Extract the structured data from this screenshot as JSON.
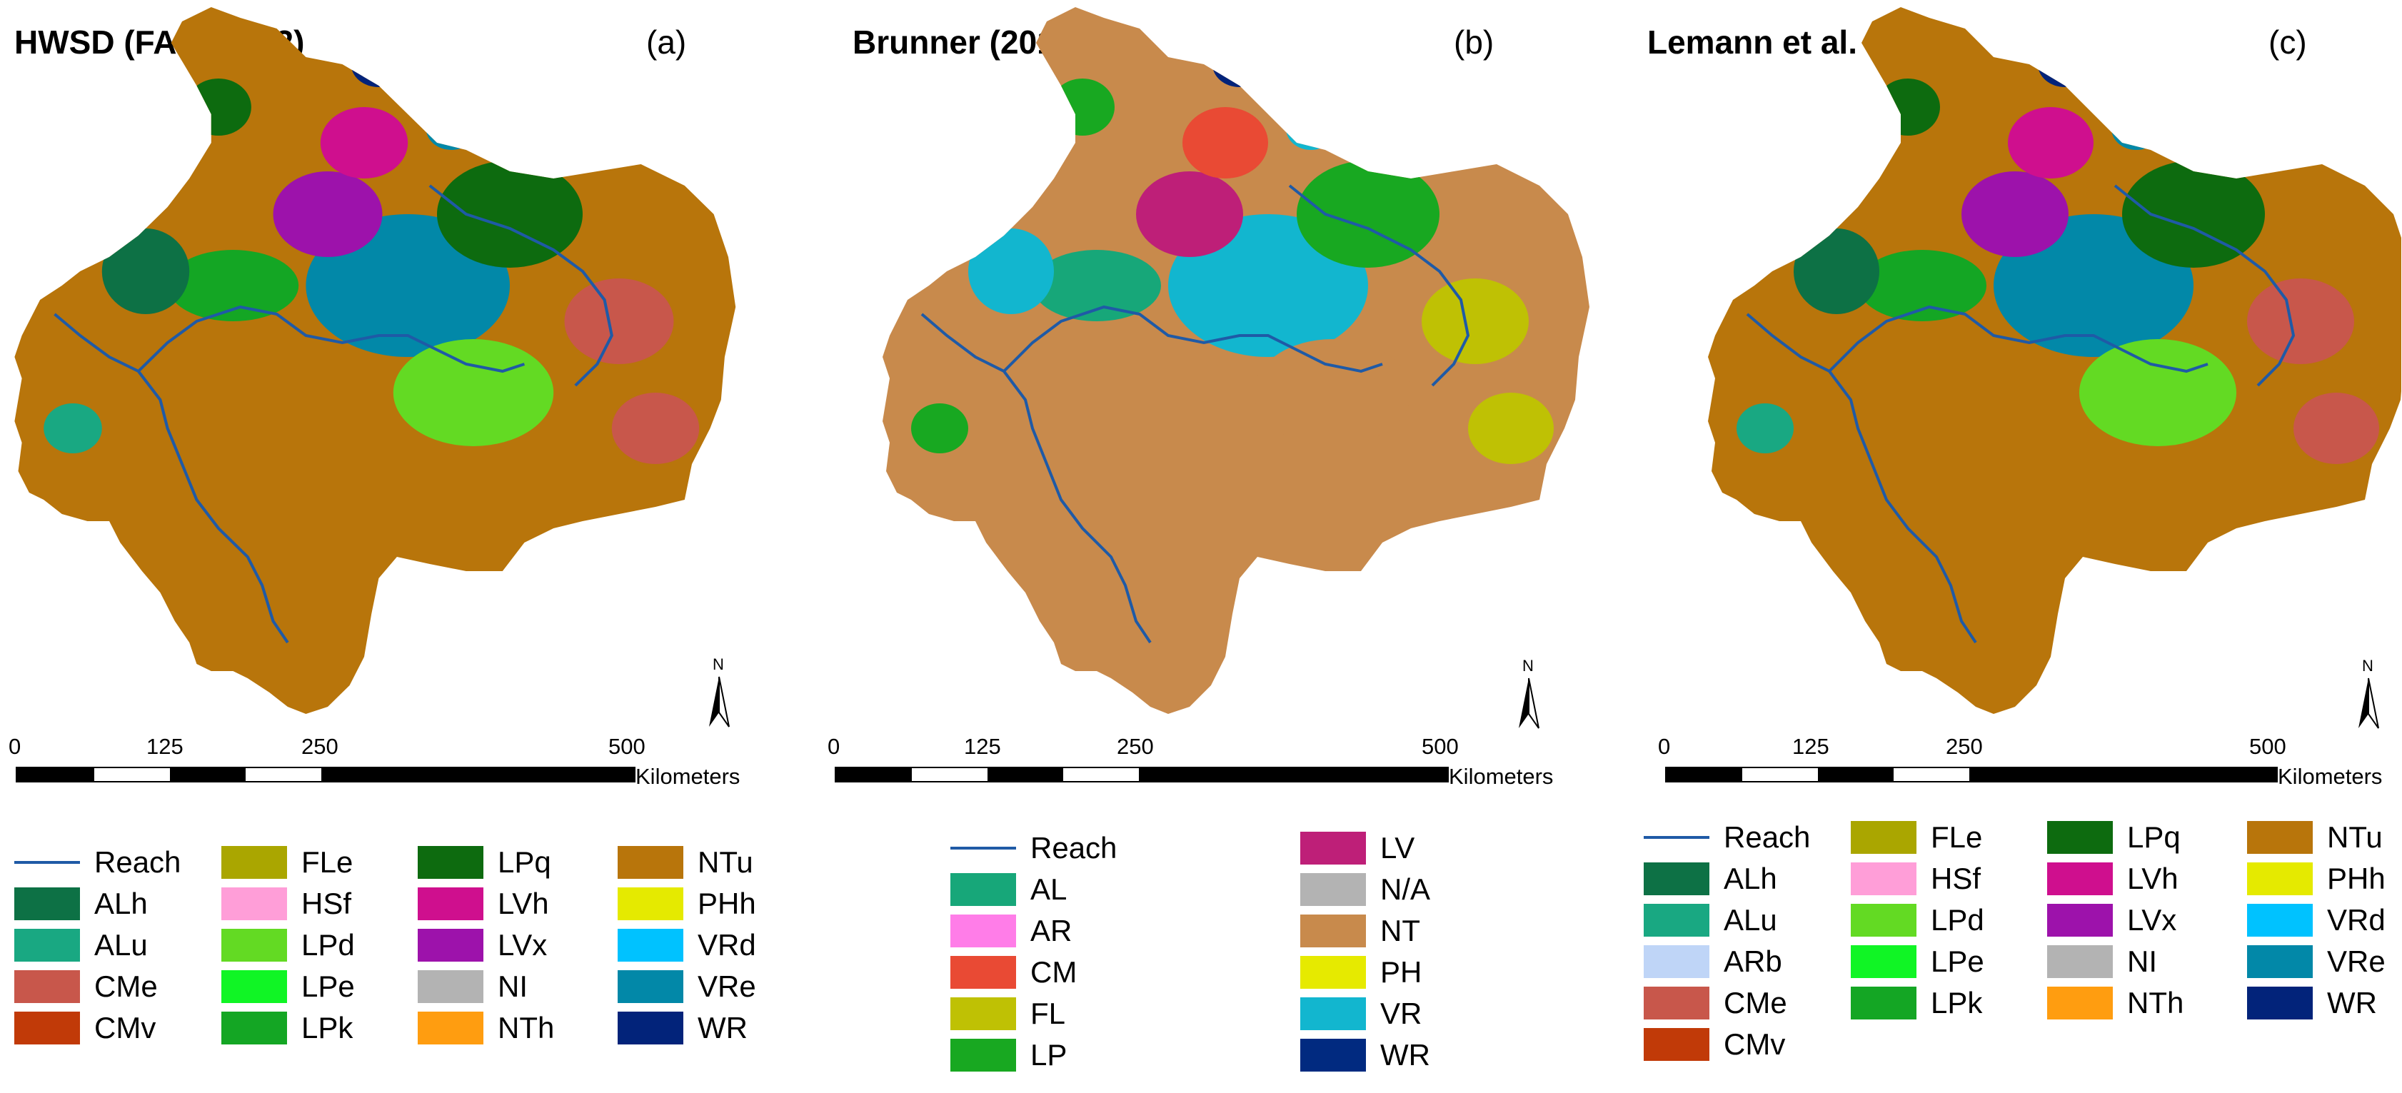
{
  "panels": [
    {
      "title": "HWSD (FAO, 2012)",
      "letter": "(a)",
      "scale": {
        "ticks": [
          "0",
          "125",
          "250",
          "500"
        ],
        "unit": "Kilometers"
      },
      "north": "N",
      "legend": {
        "reach_label": "Reach",
        "columns": [
          [
            {
              "label": "ALh",
              "color": "#0d7145"
            },
            {
              "label": "ALu",
              "color": "#19a882"
            },
            {
              "label": "CMe",
              "color": "#c8574b"
            },
            {
              "label": "CMv",
              "color": "#c13a08"
            }
          ],
          [
            {
              "label": "FLe",
              "color": "#aaa600"
            },
            {
              "label": "HSf",
              "color": "#ff9ed8"
            },
            {
              "label": "LPd",
              "color": "#63da23"
            },
            {
              "label": "LPe",
              "color": "#10f525"
            },
            {
              "label": "LPk",
              "color": "#14a624"
            }
          ],
          [
            {
              "label": "LPq",
              "color": "#0d6b0f"
            },
            {
              "label": "LVh",
              "color": "#cf0f8e"
            },
            {
              "label": "LVx",
              "color": "#9d12ab"
            },
            {
              "label": "NI",
              "color": "#b3b3b3"
            },
            {
              "label": "NTh",
              "color": "#ff9d10"
            }
          ],
          [
            {
              "label": "NTu",
              "color": "#b8750b"
            },
            {
              "label": "PHh",
              "color": "#e5ea00"
            },
            {
              "label": "VRd",
              "color": "#00c2ff"
            },
            {
              "label": "VRe",
              "color": "#0288a8"
            },
            {
              "label": "WR",
              "color": "#02237a"
            }
          ]
        ]
      }
    },
    {
      "title": "Brunner (2012)",
      "letter": "(b)",
      "scale": {
        "ticks": [
          "0",
          "125",
          "250",
          "500"
        ],
        "unit": "Kilometers"
      },
      "north": "N",
      "legend": {
        "reach_label": "Reach",
        "columns": [
          [
            {
              "label": "AL",
              "color": "#17a779"
            },
            {
              "label": "AR",
              "color": "#ff7de8"
            },
            {
              "label": "CM",
              "color": "#e94a34"
            },
            {
              "label": "FL",
              "color": "#bfc104"
            },
            {
              "label": "LP",
              "color": "#18a821"
            }
          ],
          [
            {
              "label": "LV",
              "color": "#be1f78"
            },
            {
              "label": "N/A",
              "color": "#b3b3b3"
            },
            {
              "label": "NT",
              "color": "#c88a4c"
            },
            {
              "label": "PH",
              "color": "#e6ea00"
            },
            {
              "label": "VR",
              "color": "#12b6cf"
            },
            {
              "label": "WR",
              "color": "#012a80"
            }
          ]
        ]
      }
    },
    {
      "title": "Lemann et al. (2018)",
      "letter": "(c)",
      "scale": {
        "ticks": [
          "0",
          "125",
          "250",
          "500"
        ],
        "unit": "Kilometers"
      },
      "north": "N",
      "legend": {
        "reach_label": "Reach",
        "columns": [
          [
            {
              "label": "ALh",
              "color": "#0d7145"
            },
            {
              "label": "ALu",
              "color": "#19a882"
            },
            {
              "label": "ARb",
              "color": "#bfd5f7"
            },
            {
              "label": "CMe",
              "color": "#c8574b"
            },
            {
              "label": "CMv",
              "color": "#c13a08"
            }
          ],
          [
            {
              "label": "FLe",
              "color": "#aaa600"
            },
            {
              "label": "HSf",
              "color": "#ff9ed8"
            },
            {
              "label": "LPd",
              "color": "#63da23"
            },
            {
              "label": "LPe",
              "color": "#10f525"
            },
            {
              "label": "LPk",
              "color": "#14a624"
            }
          ],
          [
            {
              "label": "LPq",
              "color": "#0d6b0f"
            },
            {
              "label": "LVh",
              "color": "#cf0f8e"
            },
            {
              "label": "LVx",
              "color": "#9d12ab"
            },
            {
              "label": "NI",
              "color": "#b3b3b3"
            },
            {
              "label": "NTh",
              "color": "#ff9d10"
            }
          ],
          [
            {
              "label": "NTu",
              "color": "#b8750b"
            },
            {
              "label": "PHh",
              "color": "#e5ea00"
            },
            {
              "label": "VRd",
              "color": "#00c2ff"
            },
            {
              "label": "VRe",
              "color": "#0288a8"
            },
            {
              "label": "WR",
              "color": "#02237a"
            }
          ]
        ]
      }
    }
  ],
  "colors": {
    "reach": "#1f5aa6"
  }
}
